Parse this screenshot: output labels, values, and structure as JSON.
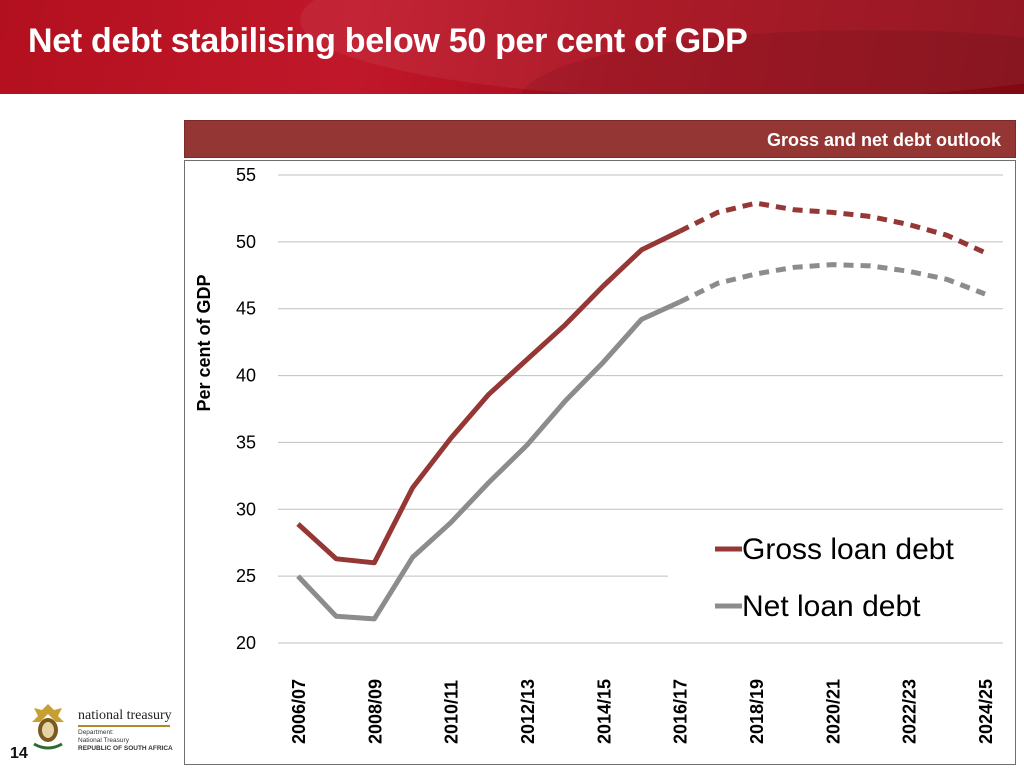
{
  "header": {
    "title": "Net debt stabilising below 50 per cent of GDP"
  },
  "chart_box": {
    "title": "Gross and net debt outlook"
  },
  "colors": {
    "gross": "#953735",
    "net": "#8c8c8c",
    "banner": "#b3101f",
    "chart_header": "#943634"
  },
  "footer": {
    "logo_name": "national treasury",
    "dept_line1": "Department:",
    "dept_line2": "National Treasury",
    "dept_line3": "REPUBLIC OF SOUTH AFRICA",
    "page_number": "14",
    "logo_icon": "coat-of-arms-icon"
  },
  "chart_data": {
    "type": "line",
    "title": "Gross and net debt outlook",
    "xlabel": "",
    "ylabel": "Per cent of GDP",
    "ylim": [
      20,
      55
    ],
    "yticks": [
      20,
      25,
      30,
      35,
      40,
      45,
      50,
      55
    ],
    "grid": true,
    "legend": "bottom-right",
    "categories": [
      "2006/07",
      "2007/08",
      "2008/09",
      "2009/10",
      "2010/11",
      "2011/12",
      "2012/13",
      "2013/14",
      "2014/15",
      "2015/16",
      "2016/17",
      "2017/18",
      "2018/19",
      "2019/20",
      "2020/21",
      "2021/22",
      "2022/23",
      "2023/24",
      "2024/25"
    ],
    "tick_labels": [
      "2006/07",
      "2008/09",
      "2010/11",
      "2012/13",
      "2014/15",
      "2016/17",
      "2018/19",
      "2020/21",
      "2022/23",
      "2024/25"
    ],
    "projection_start": "2016/17",
    "series": [
      {
        "name": "Gross loan debt",
        "color": "#953735",
        "values": [
          28.9,
          26.3,
          26.0,
          31.6,
          35.3,
          38.6,
          41.2,
          43.8,
          46.7,
          49.4,
          50.8,
          52.2,
          52.9,
          52.4,
          52.2,
          51.9,
          51.3,
          50.5,
          49.2
        ]
      },
      {
        "name": "Net loan debt",
        "color": "#8c8c8c",
        "values": [
          25.0,
          22.0,
          21.8,
          26.4,
          29.0,
          32.0,
          34.8,
          38.1,
          41.0,
          44.2,
          45.5,
          46.9,
          47.6,
          48.1,
          48.3,
          48.2,
          47.8,
          47.2,
          46.1
        ]
      }
    ]
  }
}
